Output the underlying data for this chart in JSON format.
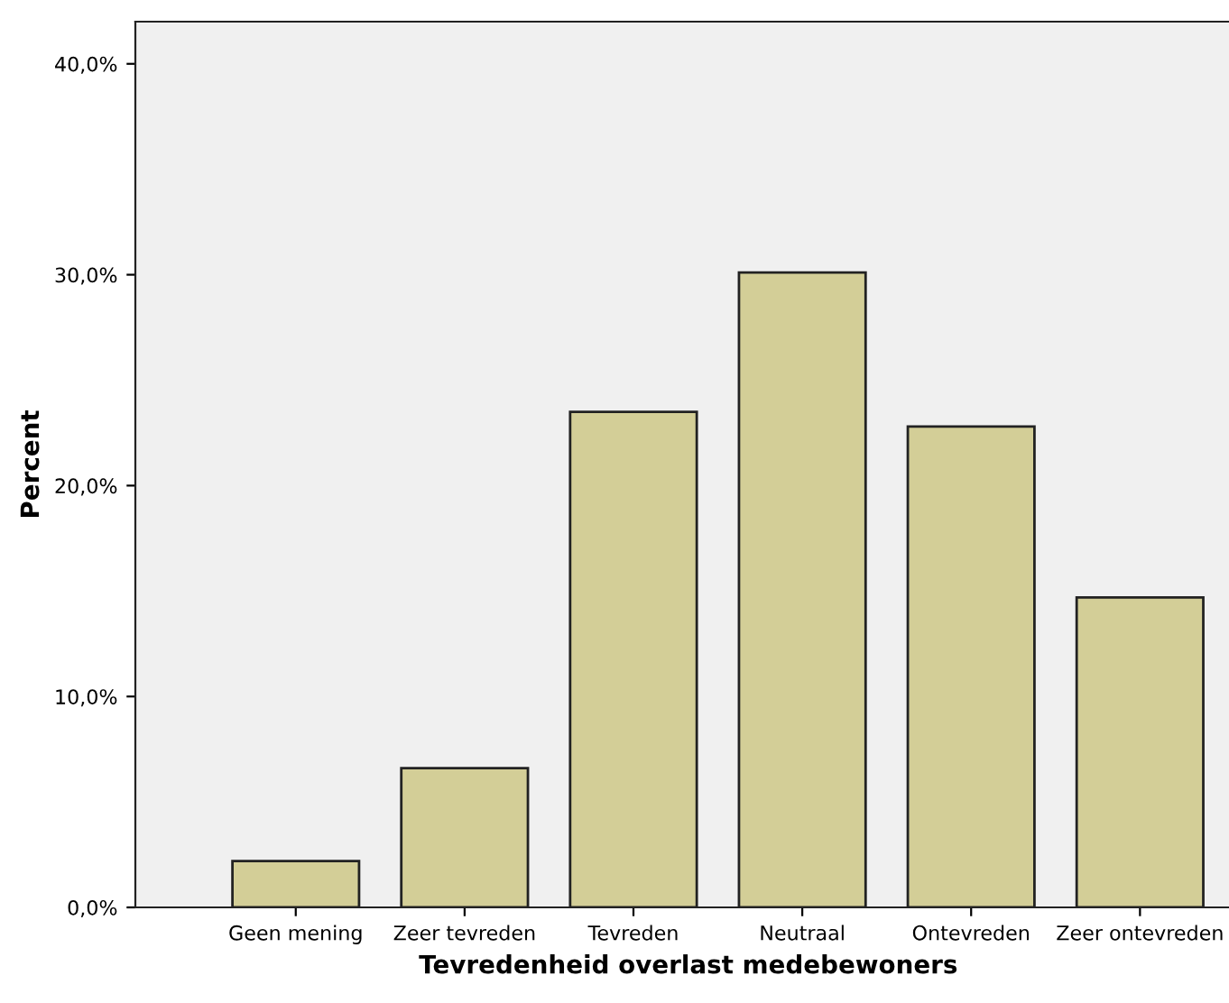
{
  "chart_data": {
    "type": "bar",
    "xlabel": "Tevredenheid overlast medebewoners",
    "ylabel": "Percent",
    "categories": [
      "Geen mening",
      "Zeer tevreden",
      "Tevreden",
      "Neutraal",
      "Ontevreden",
      "Zeer ontevreden"
    ],
    "values": [
      2.2,
      6.6,
      23.5,
      30.1,
      22.8,
      14.7
    ],
    "color": "#d3ce97",
    "ylim": [
      0,
      42
    ],
    "yticks": [
      {
        "value": 0,
        "label": "0,0%"
      },
      {
        "value": 10,
        "label": "10,0%"
      },
      {
        "value": 20,
        "label": "20,0%"
      },
      {
        "value": 30,
        "label": "30,0%"
      },
      {
        "value": 40,
        "label": "40,0%"
      }
    ],
    "grid": false
  }
}
